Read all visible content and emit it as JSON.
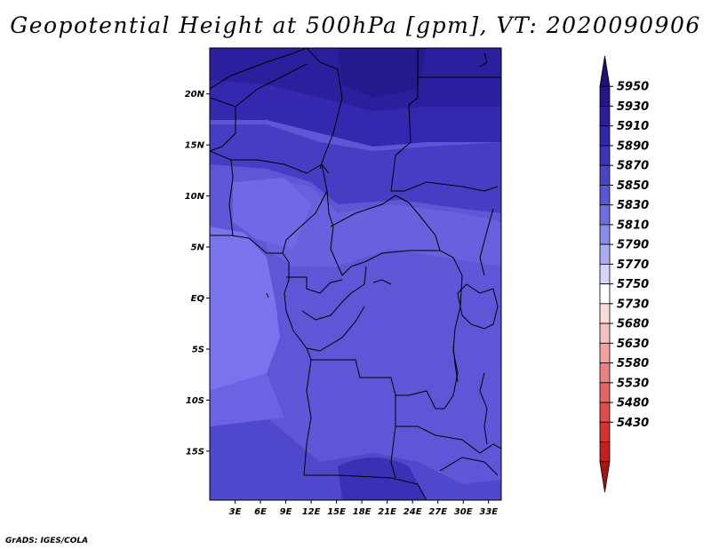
{
  "title": "Geopotential Height at 500hPa [gpm], VT: 2020090906",
  "credit": "GrADS: IGES/COLA",
  "map": {
    "lat_ticks": [
      "20N",
      "15N",
      "10N",
      "5N",
      "EQ",
      "5S",
      "10S",
      "15S"
    ],
    "lat_values": [
      20,
      15,
      10,
      5,
      0,
      -5,
      -10,
      -15
    ],
    "lon_ticks": [
      "3E",
      "6E",
      "9E",
      "12E",
      "15E",
      "18E",
      "21E",
      "24E",
      "27E",
      "30E",
      "33E"
    ],
    "lon_values": [
      3,
      6,
      9,
      12,
      15,
      18,
      21,
      24,
      27,
      30,
      33
    ],
    "lon_range": [
      0,
      34.5
    ],
    "lat_range": [
      -19.8,
      24.5
    ]
  },
  "colorbar": {
    "labels": [
      "5950",
      "5930",
      "5910",
      "5890",
      "5870",
      "5850",
      "5830",
      "5810",
      "5790",
      "5770",
      "5750",
      "5730",
      "5680",
      "5630",
      "5580",
      "5530",
      "5480",
      "5430"
    ],
    "colors": [
      "#1e1078",
      "#241689",
      "#2a1e9c",
      "#3127ad",
      "#3a34bd",
      "#4845c9",
      "#5956d6",
      "#6f6ee0",
      "#8a8aea",
      "#acacf2",
      "#d4d4f9",
      "#ffffff",
      "#fbdcdc",
      "#f8c1c1",
      "#f3a0a0",
      "#ec8080",
      "#e56464",
      "#df4c4c",
      "#d63232",
      "#c51f1f",
      "#a81414"
    ]
  },
  "field_colors": {
    "north_band": "#2b1f9e",
    "mid_north": "#3b33b8",
    "central": "#5a52d2",
    "west_coast": "#7a6ef0",
    "south_band": "#4338c4"
  }
}
